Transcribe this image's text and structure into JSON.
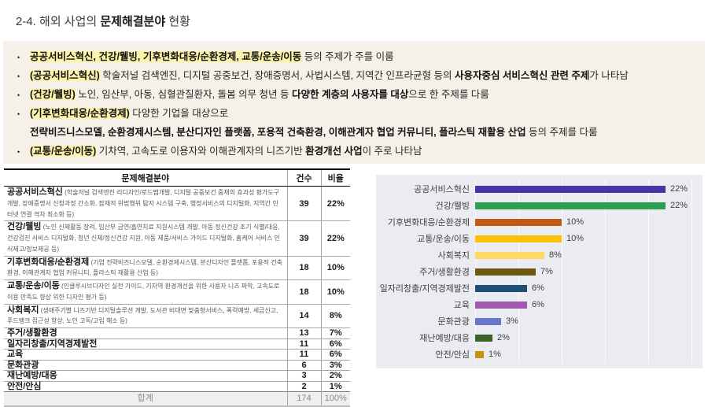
{
  "page": {
    "title_prefix": "2-4. 해외 사업의 ",
    "title_bold": "문제해결분야",
    "title_suffix": " 현황"
  },
  "colors": {
    "panel_bg": "#f5f1e8",
    "highlight": "#fcf2a8",
    "chart_bg": "#ebecf2"
  },
  "bullets": [
    {
      "continuation": false,
      "segments": [
        {
          "text": "공공서비스혁신, 건강/웰빙, 기후변화대응/순환경제, 교통/운송/이동",
          "bold": true,
          "highlight": true
        },
        {
          "text": " 등의 주제가 주를 이룸",
          "bold": false,
          "highlight": false
        }
      ]
    },
    {
      "continuation": false,
      "segments": [
        {
          "text": "(공공서비스혁신)",
          "bold": true,
          "highlight": true
        },
        {
          "text": " 학술저널 검색엔진, 디지털 공중보건, 장애증명서, 사법시스템, 지역간 인프라균형 등의 ",
          "bold": false,
          "highlight": false
        },
        {
          "text": "사용자중심 서비스혁신 관련 주제",
          "bold": true,
          "highlight": false
        },
        {
          "text": "가 나타남",
          "bold": false,
          "highlight": false
        }
      ]
    },
    {
      "continuation": false,
      "segments": [
        {
          "text": "(건강/웰빙)",
          "bold": true,
          "highlight": true
        },
        {
          "text": " 노인, 임산부, 아동, 심혈관질환자, 돌봄 의무 청년 등 ",
          "bold": false,
          "highlight": false
        },
        {
          "text": "다양한 계층의 사용자를 대상",
          "bold": true,
          "highlight": false
        },
        {
          "text": "으로 한 주제를 다룸",
          "bold": false,
          "highlight": false
        }
      ]
    },
    {
      "continuation": false,
      "segments": [
        {
          "text": "(기후변화대응/순환경제)",
          "bold": true,
          "highlight": true
        },
        {
          "text": " 다양한 기업을 대상으로",
          "bold": false,
          "highlight": false
        }
      ]
    },
    {
      "continuation": true,
      "segments": [
        {
          "text": "전략비즈니스모델, 순환경제시스템, 분산디자인 플랫폼, 포용적 건축환경, 이해관계자 협업 커뮤니티, 플라스틱 재활용 산업",
          "bold": true,
          "highlight": false
        },
        {
          "text": " 등의 주제를 다룸",
          "bold": false,
          "highlight": false
        }
      ]
    },
    {
      "continuation": false,
      "segments": [
        {
          "text": "(교통/운송/이동)",
          "bold": true,
          "highlight": true
        },
        {
          "text": " 기차역, 고속도로 이용자와 이해관계자의 니즈기반 ",
          "bold": false,
          "highlight": false
        },
        {
          "text": "환경개선 사업",
          "bold": true,
          "highlight": false
        },
        {
          "text": "이 주로 나타남",
          "bold": false,
          "highlight": false
        }
      ]
    }
  ],
  "table": {
    "headers": [
      "문제해결분야",
      "건수",
      "비율"
    ],
    "rows": [
      {
        "name": "공공서비스혁신",
        "desc": " (학술저널 검색엔진 리디자인/로드맵개발, 디지털 공중보건 중재의 효과성 평가도구 개발, 장애증명서 신청과정 간소화, 잠재적 위법행위 탐지 시스템 구축, 행정서비스의 디지털화, 지역간 인터넷 연결 격차 최소화 등)",
        "count": "39",
        "ratio": "22%"
      },
      {
        "name": "건강/웰빙",
        "desc": " (노인 신체활동 장려, 임산부 금연/흡연치료 지원시스템 개발, 아동 정신건강 조기 식별/대응, 건강검진 서비스 디지털화, 청년 신체/정신건강 지원, 아동 제품/서비스 가이드 디지털화, 홈케어 서비스 인식제고/정보제공 등)",
        "count": "39",
        "ratio": "22%"
      },
      {
        "name": "기후변화대응/순환경제",
        "desc": " (기업 전략비즈니스모델, 순환경제시스템, 분산디자인 플랫폼, 포용적 건축환경, 이해관계자 협업 커뮤니티, 플라스틱 재활용 산업 등)",
        "count": "18",
        "ratio": "10%"
      },
      {
        "name": "교통/운송/이동",
        "desc": " (인클루시브디자인 실천 가이드, 기차역 환경개선을 위한 사용자 니즈 파악, 고속도로 이용 만족도 향상 위한 디자인 평가 등)",
        "count": "18",
        "ratio": "10%"
      },
      {
        "name": "사회복지",
        "desc": " (생애주기별 니즈기반 디지털솔루션 개발, 도서관 비대면 맞춤형서비스, 폭력예방, 세금신고, 푸드뱅크 접근성 향상, 노인 고독/고립 해소 등)",
        "count": "14",
        "ratio": "8%"
      },
      {
        "name": "주거/생활환경",
        "desc": "",
        "count": "13",
        "ratio": "7%"
      },
      {
        "name": "일자리창출/지역경제발전",
        "desc": "",
        "count": "11",
        "ratio": "6%"
      },
      {
        "name": "교육",
        "desc": "",
        "count": "11",
        "ratio": "6%"
      },
      {
        "name": "문화관광",
        "desc": "",
        "count": "6",
        "ratio": "3%"
      },
      {
        "name": "재난예방/대응",
        "desc": "",
        "count": "3",
        "ratio": "2%"
      },
      {
        "name": "안전/안심",
        "desc": "",
        "count": "2",
        "ratio": "1%"
      }
    ],
    "footer": {
      "label": "합계",
      "count": "174",
      "ratio": "100%"
    }
  },
  "chart_data": {
    "type": "bar",
    "orientation": "horizontal",
    "title": "",
    "xlabel": "",
    "ylabel": "",
    "categories": [
      "공공서비스혁신",
      "건강/웰빙",
      "기후변화대응/순환경제",
      "교통/운송/이동",
      "사회복지",
      "주거/생활환경",
      "일자리창출/지역경제발전",
      "교육",
      "문화관광",
      "재난예방/대응",
      "안전/안심"
    ],
    "values": [
      22,
      22,
      10,
      10,
      8,
      7,
      6,
      6,
      3,
      2,
      1
    ],
    "value_labels": [
      "22%",
      "22%",
      "10%",
      "10%",
      "8%",
      "7%",
      "6%",
      "6%",
      "3%",
      "2%",
      "1%"
    ],
    "colors": [
      "#4a33a2",
      "#2e9e50",
      "#c05a17",
      "#fdc004",
      "#ffd966",
      "#6e570f",
      "#1f4e79",
      "#a159ae",
      "#6777c5",
      "#3e6328",
      "#c5930b"
    ],
    "xlim": [
      0,
      25
    ],
    "gridlines": [
      0,
      5,
      10,
      15,
      20,
      25
    ],
    "grid": true,
    "legend": false,
    "background": "#ebecf2"
  }
}
